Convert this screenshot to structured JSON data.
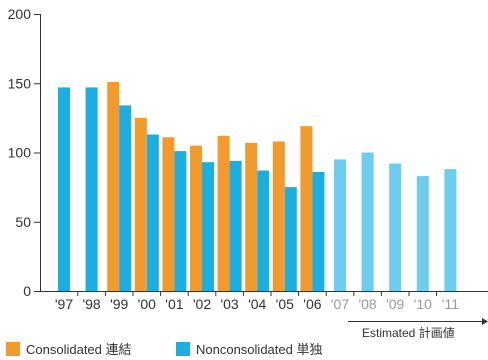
{
  "chart_data": {
    "type": "bar",
    "categories": [
      "'97",
      "'98",
      "'99",
      "'00",
      "'01",
      "'02",
      "'03",
      "'04",
      "'05",
      "'06",
      "'07",
      "'08",
      "'09",
      "'10",
      "'11"
    ],
    "series": [
      {
        "name": "Consolidated 連結",
        "color": "#f39a2c",
        "values": [
          null,
          null,
          151,
          125,
          111,
          105,
          112,
          107,
          108,
          119,
          null,
          null,
          null,
          null,
          null
        ]
      },
      {
        "name": "Nonconsolidated 単独",
        "color": "#1aaee1",
        "estimated_color": "#6dcdee",
        "values": [
          147,
          147,
          134,
          113,
          101,
          93,
          94,
          87,
          75,
          86,
          95,
          100,
          92,
          83,
          88
        ]
      }
    ],
    "estimated_from_index": 10,
    "estimated_label": "Estimated 計画値",
    "yticks": [
      0,
      50,
      100,
      150,
      200
    ],
    "ylim": [
      0,
      200
    ],
    "grid": false,
    "legend_position": "bottom-left",
    "tick_label_color": "#333333",
    "estimated_tick_color": "#9a9a9a"
  }
}
